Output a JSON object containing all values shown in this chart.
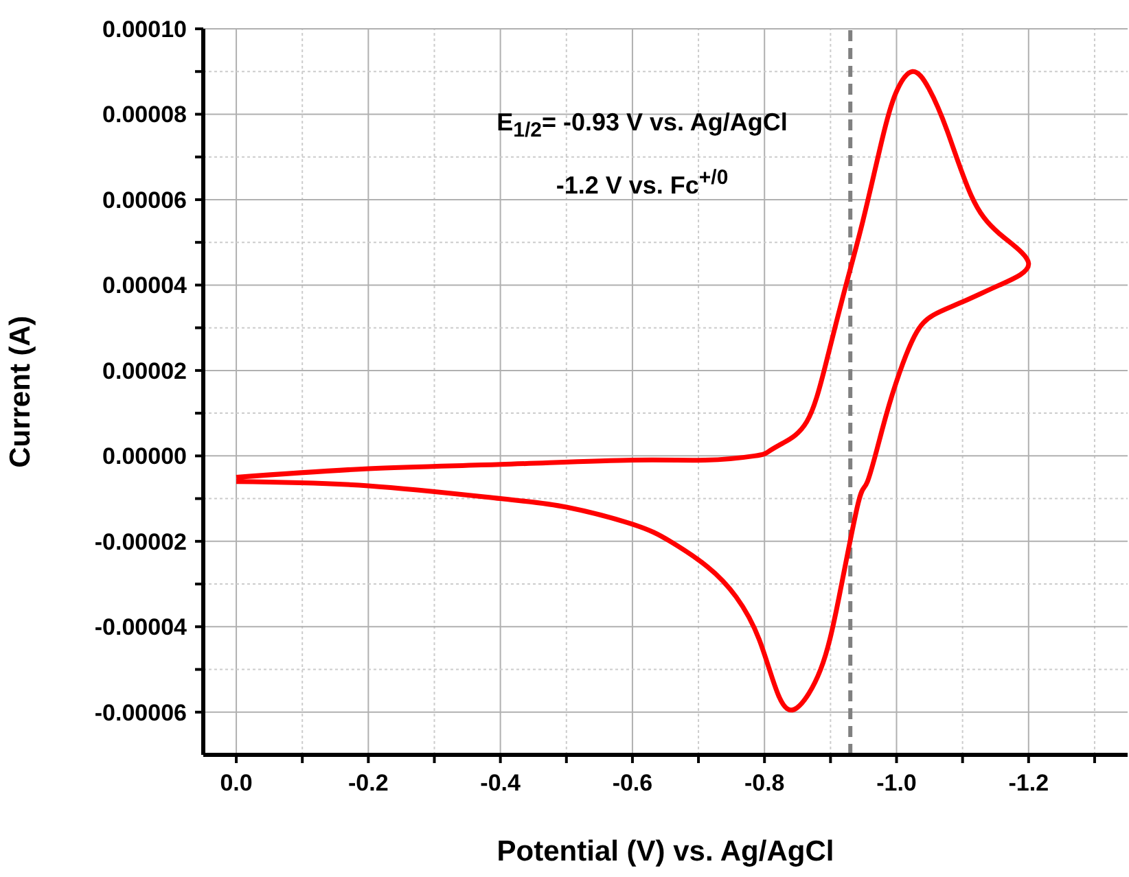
{
  "chart_data": {
    "type": "line",
    "xlabel": "Potential (V) vs. Ag/AgCl",
    "ylabel": "Current (A)",
    "xlim": [
      0.05,
      -1.35
    ],
    "xticks": [
      {
        "value": 0,
        "label": "0.0"
      },
      {
        "value": -0.1,
        "label": null
      },
      {
        "value": -0.2,
        "label": "-0.2"
      },
      {
        "value": -0.3,
        "label": null
      },
      {
        "value": -0.4,
        "label": "-0.4"
      },
      {
        "value": -0.5,
        "label": null
      },
      {
        "value": -0.6,
        "label": "-0.6"
      },
      {
        "value": -0.7,
        "label": null
      },
      {
        "value": -0.8,
        "label": "-0.8"
      },
      {
        "value": -0.9,
        "label": null
      },
      {
        "value": -1.0,
        "label": "-1.0"
      },
      {
        "value": -1.1,
        "label": null
      },
      {
        "value": -1.2,
        "label": "-1.2"
      },
      {
        "value": -1.3,
        "label": null
      }
    ],
    "ylim": [
      -7e-05,
      0.0001
    ],
    "yticks": [
      {
        "value": -6e-05,
        "label": "-0.00006"
      },
      {
        "value": -5e-05,
        "label": null
      },
      {
        "value": -4e-05,
        "label": "-0.00004"
      },
      {
        "value": -3e-05,
        "label": null
      },
      {
        "value": -2e-05,
        "label": "-0.00002"
      },
      {
        "value": -1e-05,
        "label": null
      },
      {
        "value": 0,
        "label": "0.00000"
      },
      {
        "value": 1e-05,
        "label": null
      },
      {
        "value": 2e-05,
        "label": "0.00002"
      },
      {
        "value": 3e-05,
        "label": null
      },
      {
        "value": 4e-05,
        "label": "0.00004"
      },
      {
        "value": 5e-05,
        "label": null
      },
      {
        "value": 6e-05,
        "label": "0.00006"
      },
      {
        "value": 7e-05,
        "label": null
      },
      {
        "value": 8e-05,
        "label": "0.00008"
      },
      {
        "value": 9e-05,
        "label": null
      },
      {
        "value": 0.0001,
        "label": "0.00010"
      }
    ],
    "grid": true,
    "marker": "none",
    "line_style": "solid",
    "series": [
      {
        "color": "#ff0000",
        "x": [
          0.0,
          -0.2,
          -0.4,
          -0.6,
          -0.71,
          -0.785,
          -0.806,
          -0.828,
          -0.864,
          -0.892,
          -0.92,
          -0.949,
          -0.978,
          -0.999,
          -1.024,
          -1.049,
          -1.077,
          -1.113,
          -1.156,
          -1.2,
          -1.156,
          -1.099,
          -1.056,
          -1.027,
          -0.999,
          -0.978,
          -0.956,
          -0.942,
          -0.913,
          -0.885,
          -0.849,
          -0.821,
          -0.792,
          -0.757,
          -0.714,
          -0.657,
          -0.6,
          -0.5,
          -0.4,
          -0.2,
          0.0
        ],
        "values": [
          -5e-06,
          -3e-06,
          -2e-06,
          -1e-06,
          -1e-06,
          0.0,
          1e-06,
          3e-06,
          8e-06,
          2.1e-05,
          3.8e-05,
          5.5e-05,
          7.4e-05,
          8.5e-05,
          9e-05,
          8.6e-05,
          7.6e-05,
          6.1e-05,
          5.2e-05,
          4.5e-05,
          4e-05,
          3.6e-05,
          3.3e-05,
          2.8e-05,
          1.7e-05,
          6e-06,
          -6e-06,
          -1.1e-05,
          -3.3e-05,
          -5e-05,
          -5.9e-05,
          -5.6e-05,
          -4.3e-05,
          -3.3e-05,
          -2.6e-05,
          -2e-05,
          -1.6e-05,
          -1.2e-05,
          -1e-05,
          -7e-06,
          -6e-06
        ]
      }
    ],
    "ref_lines": [
      {
        "axis": "x",
        "value": -0.93,
        "color": "#808080",
        "line_style": "dashed"
      }
    ],
    "annotations": [
      "E$_{1/2}$= -0.93 V vs. Ag/AgCl",
      "-1.2 V vs. Fc$^{+/0}$"
    ]
  }
}
